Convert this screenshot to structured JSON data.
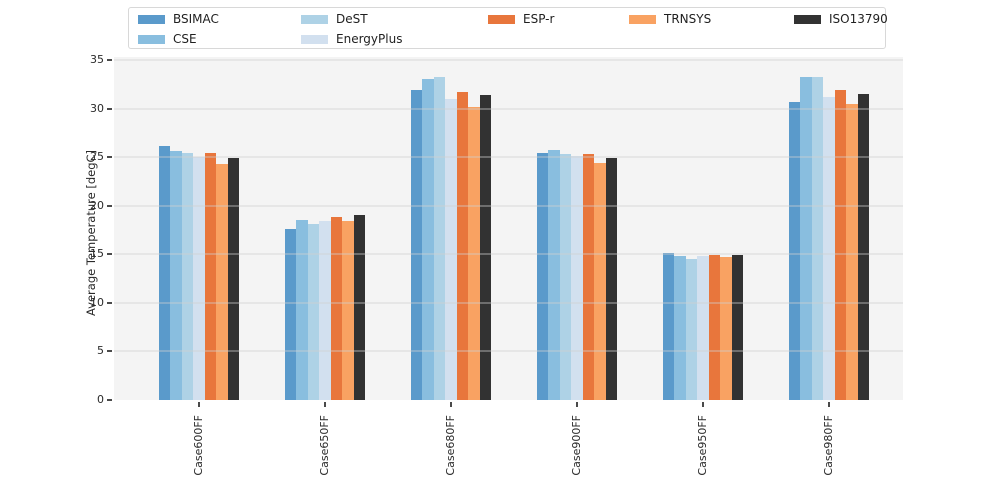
{
  "chart_data": {
    "type": "bar",
    "title": "",
    "xlabel": "",
    "ylabel": "Average Temperature [degC]",
    "ylim": [
      0,
      35
    ],
    "yticks": [
      0,
      5,
      10,
      15,
      20,
      25,
      30,
      35
    ],
    "grid": true,
    "legend_position": "upper center",
    "plot_background": "#f4f4f4",
    "categories": [
      "Case600FF",
      "Case650FF",
      "Case680FF",
      "Case900FF",
      "Case950FF",
      "Case980FF"
    ],
    "series": [
      {
        "name": "BSIMAC",
        "color": "#5a9acb",
        "values": [
          26.2,
          17.6,
          31.9,
          25.5,
          15.1,
          30.7
        ]
      },
      {
        "name": "CSE",
        "color": "#89bedf",
        "values": [
          25.7,
          18.5,
          33.1,
          25.8,
          14.8,
          33.3
        ]
      },
      {
        "name": "DeST",
        "color": "#aed2e6",
        "values": [
          25.4,
          18.1,
          33.3,
          25.3,
          14.5,
          33.3
        ]
      },
      {
        "name": "EnergyPlus",
        "color": "#d2e0ef",
        "values": [
          25.0,
          18.4,
          31.0,
          25.1,
          14.8,
          31.2
        ]
      },
      {
        "name": "ESP-r",
        "color": "#e8763c",
        "values": [
          25.4,
          18.9,
          31.7,
          25.3,
          14.9,
          31.9
        ]
      },
      {
        "name": "TRNSYS",
        "color": "#f9a262",
        "values": [
          24.3,
          18.4,
          30.2,
          24.4,
          14.7,
          30.5
        ]
      },
      {
        "name": "ISO13790",
        "color": "#323232",
        "values": [
          24.9,
          19.1,
          31.4,
          24.9,
          14.9,
          31.5
        ]
      }
    ]
  }
}
